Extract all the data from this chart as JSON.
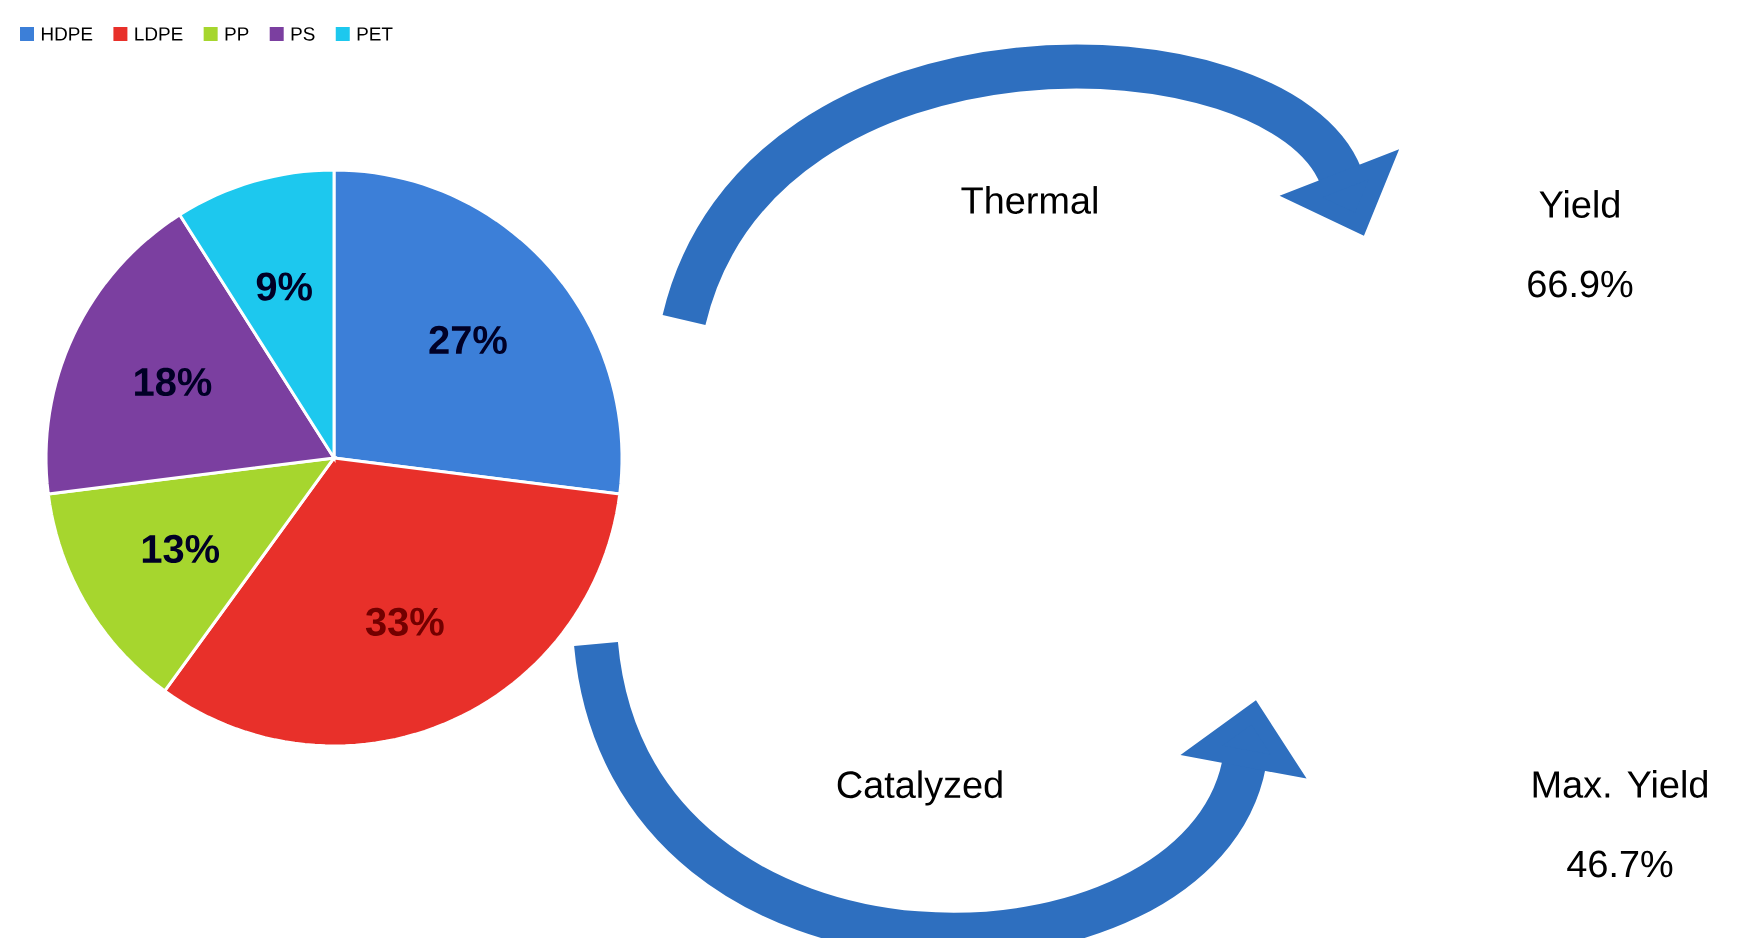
{
  "chart_data": {
    "type": "pie",
    "categories": [
      "HDPE",
      "LDPE",
      "PP",
      "PS",
      "PET"
    ],
    "values": [
      27,
      33,
      13,
      18,
      9
    ],
    "value_labels": [
      "27%",
      "33%",
      "13%",
      "18%",
      "9%"
    ],
    "colors": [
      "#3c7fd8",
      "#e8302a",
      "#a6d62e",
      "#7b3fa0",
      "#1dc8ee"
    ],
    "legend": "top left",
    "annotations": [
      "Thermal",
      "Yield",
      "66.9%",
      "Catalyzed",
      "Max. Yield",
      "46.7%"
    ]
  }
}
